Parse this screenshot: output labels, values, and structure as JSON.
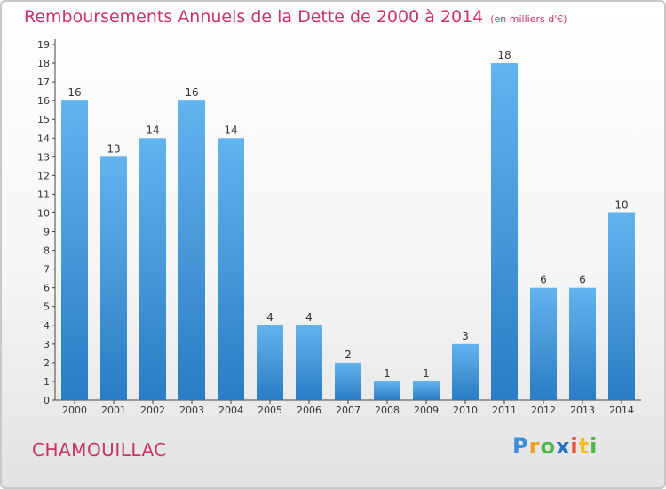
{
  "title": "Remboursements Annuels de la Dette de 2000 à 2014",
  "subtitle": "(en milliers d'€)",
  "commune": "CHAMOUILLAC",
  "logo": {
    "p": "P",
    "r": "r",
    "o": "o",
    "x": "x",
    "i": "i",
    "t": "t",
    "i2": "i"
  },
  "colors": {
    "bar_top": "#62b4ee",
    "bar_bottom": "#2a7cc4",
    "title": "#c8336a"
  },
  "chart_data": {
    "type": "bar",
    "categories": [
      "2000",
      "2001",
      "2002",
      "2003",
      "2004",
      "2005",
      "2006",
      "2007",
      "2008",
      "2009",
      "2010",
      "2011",
      "2012",
      "2013",
      "2014"
    ],
    "values": [
      16,
      13,
      14,
      16,
      14,
      4,
      4,
      2,
      1,
      1,
      3,
      18,
      6,
      6,
      10
    ],
    "data_labels": [
      "16",
      "13",
      "14",
      "16",
      "14",
      "4",
      "4",
      "2",
      "1",
      "1",
      "3",
      "18",
      "6",
      "6",
      "10"
    ],
    "yticks": [
      "0",
      "1",
      "2",
      "3",
      "4",
      "5",
      "6",
      "7",
      "8",
      "9",
      "10",
      "11",
      "12",
      "13",
      "14",
      "15",
      "16",
      "17",
      "18",
      "19"
    ],
    "ylim": [
      0,
      19
    ],
    "grid": false,
    "legend": "none"
  }
}
